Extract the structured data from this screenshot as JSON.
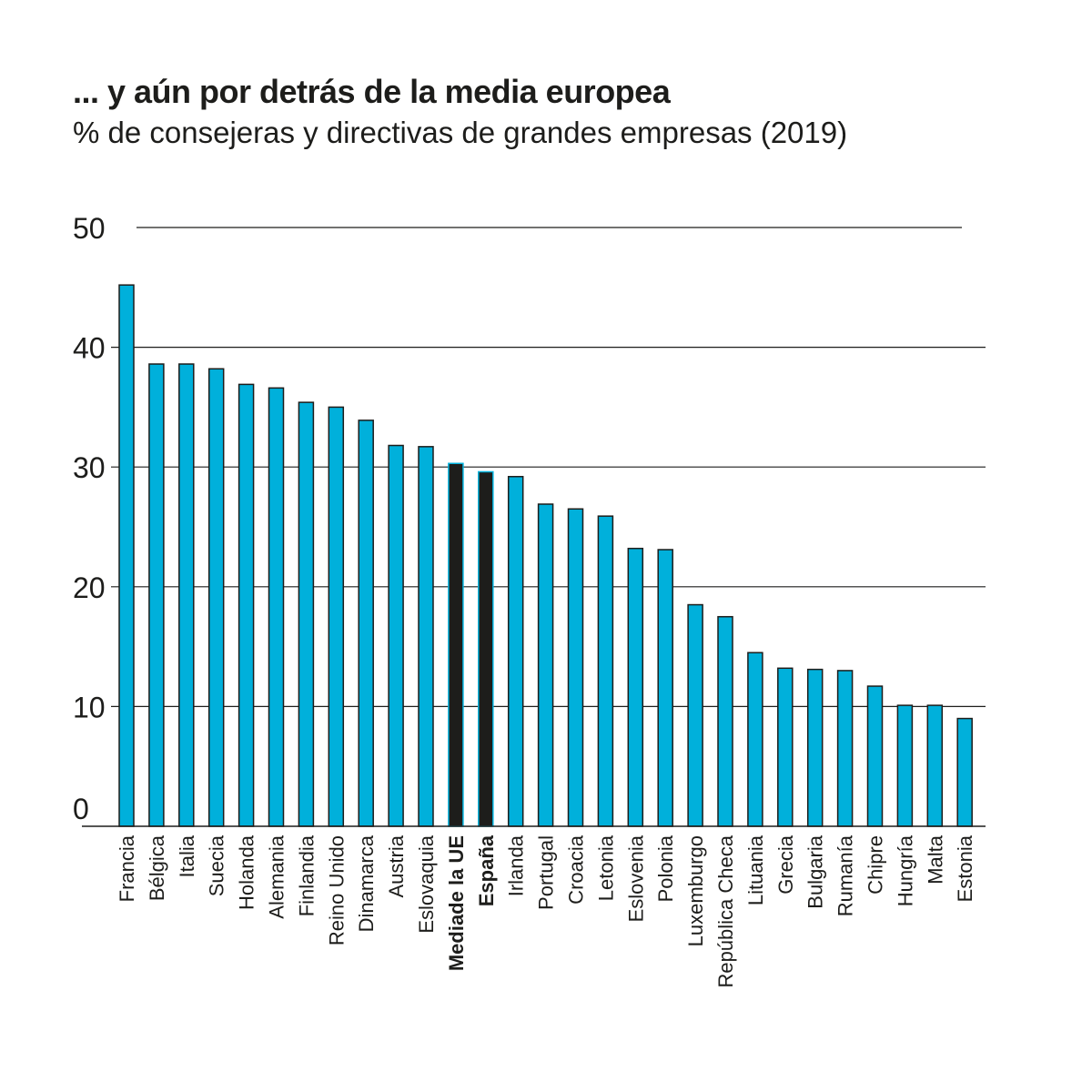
{
  "chart_data": {
    "type": "bar",
    "title": "... y aún por detrás de la media europea",
    "subtitle": "% de consejeras y directivas de grandes empresas (2019)",
    "xlabel": "",
    "ylabel": "",
    "ylim": [
      0,
      50
    ],
    "yticks": [
      0,
      10,
      20,
      30,
      40,
      50
    ],
    "grid": true,
    "legend": "none",
    "categories": [
      "Francia",
      "Bélgica",
      "Italia",
      "Suecia",
      "Holanda",
      "Alemania",
      "Finlandia",
      "Reino Unido",
      "Dinamarca",
      "Austria",
      "Eslovaquia",
      "Mediade la UE",
      "España",
      "Irlanda",
      "Portugal",
      "Croacia",
      "Letonia",
      "Eslovenia",
      "Polonia",
      "Luxemburgo",
      "República Checa",
      "Lituania",
      "Grecia",
      "Bulgaria",
      "Rumanía",
      "Chipre",
      "Hungría",
      "Malta",
      "Estonia"
    ],
    "values": [
      45.2,
      38.6,
      38.6,
      38.2,
      36.9,
      36.6,
      35.4,
      35.0,
      33.9,
      31.8,
      31.7,
      30.3,
      29.6,
      29.2,
      26.9,
      26.5,
      25.9,
      23.2,
      23.1,
      18.5,
      17.5,
      14.5,
      13.2,
      13.1,
      13.0,
      11.7,
      10.1,
      10.1,
      9.0
    ],
    "highlighted": [
      "Mediade la UE",
      "España"
    ],
    "colors": {
      "bar": "#00b0db",
      "highlight": "#1d1d1b",
      "stroke": "#1d1d1b",
      "grid": "#1d1d1b",
      "text": "#1d1d1b"
    }
  }
}
